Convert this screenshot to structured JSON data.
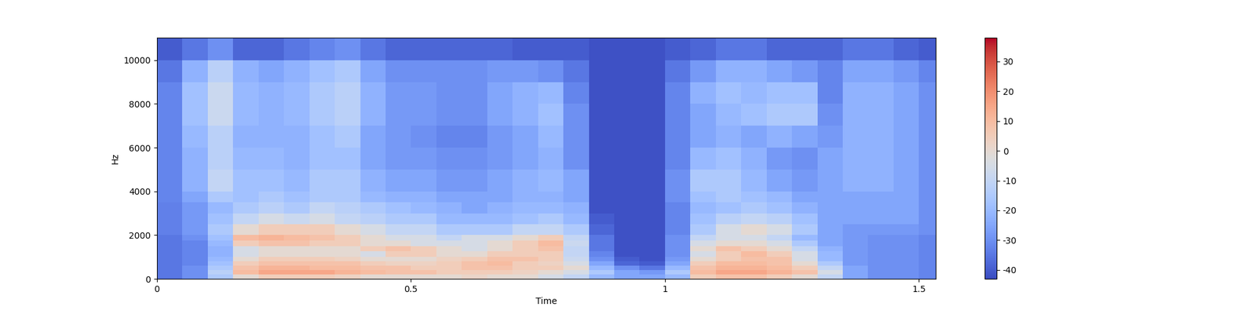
{
  "chart_data": {
    "type": "heatmap",
    "xlabel": "Time",
    "ylabel": "Hz",
    "xlim": [
      0,
      1.533
    ],
    "ylim": [
      0,
      11025
    ],
    "xticks": [
      0,
      0.5,
      1,
      1.5
    ],
    "yticks": [
      0,
      2000,
      4000,
      6000,
      8000,
      10000
    ],
    "x_edges": [
      0,
      0.05,
      0.1,
      0.15,
      0.2,
      0.25,
      0.3,
      0.35,
      0.4,
      0.45,
      0.5,
      0.55,
      0.6,
      0.65,
      0.7,
      0.75,
      0.8,
      0.85,
      0.9,
      0.95,
      1.0,
      1.05,
      1.1,
      1.15,
      1.2,
      1.25,
      1.3,
      1.35,
      1.4,
      1.45,
      1.5,
      1.533
    ],
    "y_edges": [
      0,
      200,
      400,
      600,
      800,
      1000,
      1250,
      1500,
      1750,
      2000,
      2500,
      3000,
      3500,
      4000,
      5000,
      6000,
      7000,
      8000,
      9000,
      10000,
      11025
    ],
    "cells": [
      [
        -35,
        -30,
        -15,
        0,
        5,
        5,
        5,
        3,
        0,
        0,
        0,
        0,
        2,
        0,
        0,
        -5,
        -10,
        -20,
        -25,
        -25,
        -20,
        5,
        8,
        8,
        5,
        0,
        -10,
        -25,
        -30,
        -30,
        -32
      ],
      [
        -35,
        -30,
        -12,
        10,
        15,
        15,
        15,
        12,
        10,
        8,
        8,
        5,
        5,
        5,
        3,
        0,
        -5,
        -15,
        -25,
        -28,
        -15,
        10,
        15,
        15,
        12,
        8,
        -5,
        -25,
        -30,
        -30,
        -32
      ],
      [
        -35,
        -30,
        -15,
        8,
        12,
        12,
        10,
        10,
        8,
        8,
        5,
        5,
        8,
        8,
        5,
        5,
        0,
        -20,
        -30,
        -35,
        -20,
        8,
        12,
        12,
        10,
        5,
        -10,
        -25,
        -30,
        -30,
        -32
      ],
      [
        -35,
        -32,
        -18,
        5,
        8,
        8,
        8,
        8,
        5,
        3,
        3,
        5,
        8,
        10,
        5,
        3,
        -5,
        -25,
        -38,
        -40,
        -25,
        5,
        10,
        10,
        8,
        0,
        -15,
        -28,
        -30,
        -30,
        -32
      ],
      [
        -35,
        -32,
        -20,
        0,
        5,
        5,
        5,
        3,
        0,
        0,
        0,
        3,
        5,
        8,
        8,
        5,
        -8,
        -30,
        -40,
        -42,
        -28,
        0,
        5,
        8,
        8,
        -5,
        -20,
        -28,
        -30,
        -30,
        -32
      ],
      [
        -35,
        -32,
        -22,
        -5,
        0,
        0,
        0,
        0,
        -5,
        5,
        5,
        0,
        0,
        5,
        5,
        5,
        -10,
        -32,
        -42,
        -42,
        -30,
        -5,
        5,
        10,
        5,
        -5,
        -20,
        -28,
        -30,
        -30,
        -32
      ],
      [
        -35,
        -32,
        -22,
        -5,
        0,
        0,
        0,
        0,
        5,
        8,
        5,
        0,
        -5,
        0,
        5,
        8,
        -10,
        -35,
        -42,
        -42,
        -30,
        0,
        8,
        5,
        0,
        -10,
        -22,
        -28,
        -30,
        -30,
        -32
      ],
      [
        -35,
        -32,
        -20,
        5,
        8,
        8,
        5,
        5,
        0,
        0,
        -5,
        -5,
        -5,
        0,
        5,
        10,
        -8,
        -35,
        -42,
        -42,
        -30,
        -5,
        0,
        0,
        -5,
        -15,
        -25,
        -28,
        -30,
        -30,
        -32
      ],
      [
        -35,
        -30,
        -18,
        10,
        12,
        10,
        8,
        5,
        0,
        -5,
        -5,
        -10,
        -5,
        -5,
        0,
        5,
        -10,
        -35,
        -42,
        -42,
        -30,
        -10,
        -5,
        -5,
        -10,
        -20,
        -25,
        -28,
        -30,
        -30,
        -32
      ],
      [
        -33,
        -28,
        -15,
        0,
        5,
        5,
        5,
        0,
        -5,
        -10,
        -10,
        -15,
        -15,
        -15,
        -10,
        -10,
        -15,
        -38,
        -42,
        -42,
        -32,
        -15,
        -5,
        0,
        -5,
        -15,
        -25,
        -28,
        -28,
        -28,
        -30
      ],
      [
        -33,
        -28,
        -18,
        -10,
        -5,
        -8,
        -5,
        -10,
        -12,
        -15,
        -15,
        -20,
        -20,
        -20,
        -18,
        -15,
        -20,
        -40,
        -42,
        -42,
        -32,
        -18,
        -12,
        -10,
        -12,
        -18,
        -25,
        -25,
        -25,
        -25,
        -30
      ],
      [
        -33,
        -28,
        -20,
        -15,
        -12,
        -15,
        -10,
        -12,
        -15,
        -18,
        -20,
        -22,
        -25,
        -22,
        -20,
        -20,
        -22,
        -42,
        -42,
        -42,
        -32,
        -20,
        -18,
        -15,
        -18,
        -22,
        -25,
        -25,
        -25,
        -25,
        -30
      ],
      [
        -32,
        -25,
        -15,
        -18,
        -15,
        -18,
        -15,
        -15,
        -20,
        -22,
        -22,
        -25,
        -25,
        -25,
        -22,
        -22,
        -25,
        -42,
        -42,
        -42,
        -30,
        -18,
        -15,
        -18,
        -20,
        -25,
        -25,
        -25,
        -25,
        -25,
        -30
      ],
      [
        -32,
        -22,
        -10,
        -18,
        -18,
        -20,
        -15,
        -15,
        -22,
        -25,
        -25,
        -28,
        -28,
        -25,
        -22,
        -20,
        -25,
        -42,
        -42,
        -42,
        -30,
        -15,
        -15,
        -20,
        -25,
        -28,
        -25,
        -22,
        -22,
        -25,
        -30
      ],
      [
        -32,
        -22,
        -12,
        -20,
        -20,
        -22,
        -18,
        -18,
        -25,
        -28,
        -28,
        -30,
        -30,
        -28,
        -25,
        -22,
        -30,
        -42,
        -42,
        -42,
        -32,
        -20,
        -18,
        -22,
        -28,
        -30,
        -25,
        -22,
        -22,
        -25,
        -30
      ],
      [
        -32,
        -20,
        -12,
        -22,
        -22,
        -22,
        -18,
        -15,
        -25,
        -28,
        -30,
        -32,
        -32,
        -28,
        -25,
        -20,
        -30,
        -42,
        -42,
        -42,
        -32,
        -25,
        -22,
        -25,
        -22,
        -25,
        -28,
        -22,
        -22,
        -25,
        -30
      ],
      [
        -32,
        -18,
        -8,
        -20,
        -22,
        -20,
        -15,
        -12,
        -22,
        -28,
        -28,
        -30,
        -30,
        -25,
        -22,
        -18,
        -30,
        -42,
        -42,
        -42,
        -32,
        -25,
        -20,
        -18,
        -15,
        -15,
        -30,
        -22,
        -22,
        -25,
        -30
      ],
      [
        -32,
        -18,
        -8,
        -20,
        -22,
        -20,
        -15,
        -12,
        -22,
        -28,
        -28,
        -30,
        -30,
        -25,
        -22,
        -20,
        -32,
        -42,
        -42,
        -42,
        -32,
        -22,
        -18,
        -20,
        -18,
        -18,
        -32,
        -22,
        -22,
        -25,
        -30
      ],
      [
        -35,
        -22,
        -12,
        -22,
        -25,
        -22,
        -18,
        -15,
        -25,
        -30,
        -30,
        -30,
        -30,
        -28,
        -28,
        -30,
        -35,
        -42,
        -42,
        -42,
        -35,
        -28,
        -22,
        -22,
        -25,
        -28,
        -32,
        -25,
        -25,
        -28,
        -32
      ],
      [
        -40,
        -35,
        -30,
        -38,
        -38,
        -35,
        -32,
        -30,
        -35,
        -38,
        -38,
        -38,
        -38,
        -38,
        -40,
        -40,
        -40,
        -42,
        -42,
        -42,
        -40,
        -38,
        -35,
        -35,
        -38,
        -38,
        -38,
        -35,
        -35,
        -38,
        -40
      ]
    ],
    "colorbar_range": [
      -43,
      38
    ],
    "colorbar_ticks": [
      -40,
      -30,
      -20,
      -10,
      0,
      10,
      20,
      30
    ]
  }
}
